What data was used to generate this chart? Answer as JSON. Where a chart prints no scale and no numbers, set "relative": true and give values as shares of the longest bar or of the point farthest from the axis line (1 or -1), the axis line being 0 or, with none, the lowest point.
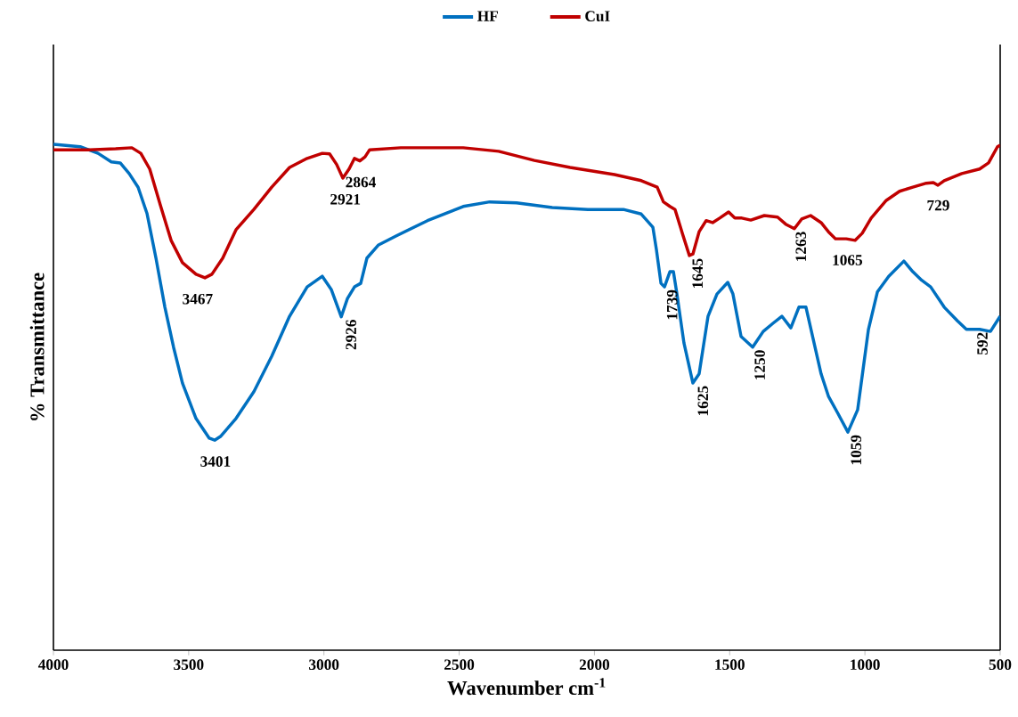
{
  "chart_data": {
    "type": "line",
    "relative": true,
    "xlabel": "Wavenumber cm$^{-1}$",
    "ylabel": "% Transmittance",
    "xlim": [
      4000,
      500
    ],
    "xticks": [
      4000,
      3500,
      3000,
      2500,
      2000,
      1500,
      1000,
      500
    ],
    "legend": "top",
    "grid": false,
    "marker": "none",
    "line_style": "solid",
    "series": [
      {
        "name": "HF",
        "color": "#0070c0",
        "x": [
          4000,
          3901,
          3835,
          3786,
          3753,
          3720,
          3687,
          3654,
          3621,
          3588,
          3556,
          3523,
          3473,
          3424,
          3404,
          3381,
          3325,
          3259,
          3193,
          3127,
          3062,
          3006,
          2973,
          2936,
          2913,
          2887,
          2864,
          2841,
          2798,
          2732,
          2617,
          2485,
          2387,
          2288,
          2156,
          2024,
          1893,
          1827,
          1784,
          1771,
          1754,
          1741,
          1721,
          1708,
          1695,
          1669,
          1636,
          1613,
          1580,
          1547,
          1507,
          1488,
          1458,
          1415,
          1376,
          1340,
          1307,
          1274,
          1244,
          1218,
          1188,
          1162,
          1135,
          1102,
          1063,
          1027,
          987,
          954,
          912,
          856,
          823,
          790,
          757,
          707,
          658,
          625,
          576,
          536,
          500
        ],
        "values": [
          1.0,
          0.995,
          0.982,
          0.965,
          0.963,
          0.942,
          0.915,
          0.863,
          0.775,
          0.678,
          0.599,
          0.528,
          0.458,
          0.419,
          0.415,
          0.423,
          0.458,
          0.511,
          0.581,
          0.66,
          0.718,
          0.739,
          0.713,
          0.659,
          0.695,
          0.718,
          0.725,
          0.775,
          0.801,
          0.819,
          0.849,
          0.877,
          0.886,
          0.884,
          0.875,
          0.871,
          0.871,
          0.862,
          0.836,
          0.792,
          0.725,
          0.718,
          0.748,
          0.748,
          0.704,
          0.607,
          0.528,
          0.546,
          0.66,
          0.704,
          0.727,
          0.704,
          0.62,
          0.599,
          0.63,
          0.646,
          0.66,
          0.637,
          0.678,
          0.678,
          0.607,
          0.546,
          0.502,
          0.47,
          0.431,
          0.475,
          0.634,
          0.708,
          0.739,
          0.769,
          0.748,
          0.731,
          0.718,
          0.678,
          0.651,
          0.634,
          0.634,
          0.63,
          0.66
        ]
      },
      {
        "name": "CuI",
        "color": "#c00000",
        "x": [
          4000,
          3868,
          3770,
          3710,
          3677,
          3644,
          3605,
          3565,
          3523,
          3473,
          3440,
          3414,
          3374,
          3325,
          3259,
          3193,
          3127,
          3062,
          3006,
          2979,
          2953,
          2930,
          2907,
          2887,
          2867,
          2848,
          2831,
          2716,
          2485,
          2354,
          2222,
          2090,
          1926,
          1827,
          1768,
          1745,
          1721,
          1702,
          1675,
          1649,
          1636,
          1613,
          1587,
          1563,
          1537,
          1504,
          1481,
          1455,
          1422,
          1372,
          1323,
          1293,
          1261,
          1234,
          1201,
          1162,
          1135,
          1109,
          1069,
          1036,
          1010,
          977,
          921,
          872,
          823,
          773,
          747,
          730,
          707,
          642,
          576,
          543,
          510,
          500
        ],
        "values": [
          0.989,
          0.989,
          0.991,
          0.993,
          0.982,
          0.951,
          0.88,
          0.81,
          0.766,
          0.743,
          0.736,
          0.743,
          0.775,
          0.831,
          0.871,
          0.915,
          0.954,
          0.972,
          0.982,
          0.981,
          0.96,
          0.933,
          0.951,
          0.972,
          0.967,
          0.975,
          0.989,
          0.993,
          0.993,
          0.986,
          0.968,
          0.954,
          0.94,
          0.928,
          0.915,
          0.886,
          0.877,
          0.871,
          0.824,
          0.78,
          0.783,
          0.827,
          0.849,
          0.845,
          0.854,
          0.866,
          0.854,
          0.854,
          0.85,
          0.859,
          0.856,
          0.842,
          0.833,
          0.852,
          0.859,
          0.845,
          0.827,
          0.813,
          0.813,
          0.81,
          0.824,
          0.854,
          0.889,
          0.907,
          0.915,
          0.923,
          0.924,
          0.919,
          0.928,
          0.942,
          0.951,
          0.963,
          0.995,
          0.998
        ]
      }
    ],
    "annotations": [
      {
        "text": "3401",
        "x": 3401,
        "y": 0.415
      },
      {
        "text": "2926",
        "x": 2926,
        "y": 0.659
      },
      {
        "text": "1739",
        "x": 1739,
        "y": 0.718
      },
      {
        "text": "1625",
        "x": 1625,
        "y": 0.528
      },
      {
        "text": "1250",
        "x": 1415,
        "y": 0.599
      },
      {
        "text": "1059",
        "x": 1059,
        "y": 0.431
      },
      {
        "text": "592",
        "x": 592,
        "y": 0.634
      },
      {
        "text": "3467",
        "x": 3467,
        "y": 0.736
      },
      {
        "text": "2921",
        "x": 2921,
        "y": 0.933
      },
      {
        "text": "2864",
        "x": 2864,
        "y": 0.967
      },
      {
        "text": "1645",
        "x": 1645,
        "y": 0.78
      },
      {
        "text": "1263",
        "x": 1263,
        "y": 0.833
      },
      {
        "text": "1065",
        "x": 1065,
        "y": 0.813
      },
      {
        "text": "729",
        "x": 729,
        "y": 0.921
      }
    ]
  }
}
